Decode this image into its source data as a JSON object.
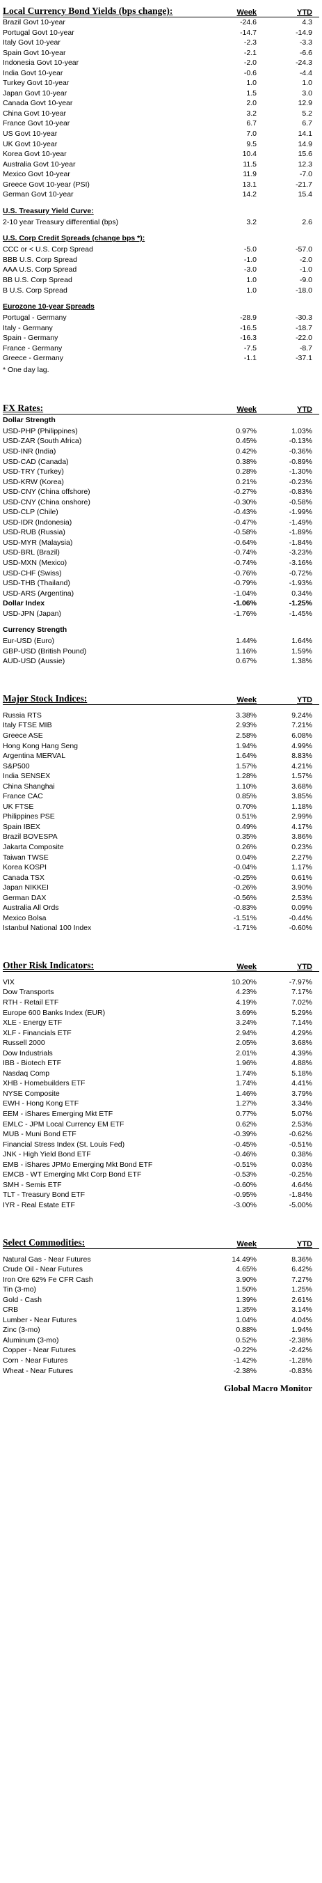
{
  "bonds": {
    "title": "Local Currency Bond Yields (bps change):",
    "col1": "Week",
    "col2": "YTD",
    "rows": [
      [
        "Brazil Govt 10-year",
        "-24.6",
        "4.3"
      ],
      [
        "Portugal Govt 10-year",
        "-14.7",
        "-14.9"
      ],
      [
        "Italy Govt 10-year",
        "-2.3",
        "-3.3"
      ],
      [
        "Spain Govt 10-year",
        "-2.1",
        "-6.6"
      ],
      [
        "Indonesia Govt 10-year",
        "-2.0",
        "-24.3"
      ],
      [
        "India Govt 10-year",
        "-0.6",
        "-4.4"
      ],
      [
        "Turkey Govt 10-year",
        "1.0",
        "1.0"
      ],
      [
        "Japan Govt 10-year",
        "1.5",
        "3.0"
      ],
      [
        "Canada Govt 10-year",
        "2.0",
        "12.9"
      ],
      [
        "China Govt 10-year",
        "3.2",
        "5.2"
      ],
      [
        "France Govt 10-year",
        "6.7",
        "6.7"
      ],
      [
        "US Govt 10-year",
        "7.0",
        "14.1"
      ],
      [
        "UK Govt 10-year",
        "9.5",
        "14.9"
      ],
      [
        "Korea Govt 10-year",
        "10.4",
        "15.6"
      ],
      [
        "Australia Govt 10-year",
        "11.5",
        "12.3"
      ],
      [
        "Mexico Govt 10-year",
        "11.9",
        "-7.0"
      ],
      [
        "Greece Govt 10-year (PSI)",
        "13.1",
        "-21.7"
      ],
      [
        "German Govt 10-year",
        "14.2",
        "15.4"
      ]
    ],
    "curve_title": "U.S. Treasury Yield Curve:",
    "curve_rows": [
      [
        "2-10 year Treasury differential (bps)",
        "3.2",
        "2.6"
      ]
    ],
    "credit_title": "U.S. Corp Credit Spreads (change bps *):",
    "credit_rows": [
      [
        "CCC or < U.S. Corp Spread",
        "-5.0",
        "-57.0"
      ],
      [
        "BBB U.S. Corp Spread",
        "-1.0",
        "-2.0"
      ],
      [
        "AAA U.S. Corp Spread",
        "-3.0",
        "-1.0"
      ],
      [
        "BB U.S. Corp Spread",
        "1.0",
        "-9.0"
      ],
      [
        "B U.S. Corp Spread",
        "1.0",
        "-18.0"
      ]
    ],
    "euro_title": "Eurozone 10-year Spreads",
    "euro_rows": [
      [
        "Portugal - Germany",
        "-28.9",
        "-30.3"
      ],
      [
        "Italy - Germany",
        "-16.5",
        "-18.7"
      ],
      [
        "Spain - Germany",
        "-16.3",
        "-22.0"
      ],
      [
        "France - Germany",
        "-7.5",
        "-8.7"
      ],
      [
        "Greece - Germany",
        "-1.1",
        "-37.1"
      ]
    ],
    "note": "* One day lag."
  },
  "fx": {
    "title": "FX Rates:",
    "col1": "Week",
    "col2": "YTD",
    "strength_title": "Dollar Strength",
    "rows": [
      [
        "USD-PHP (Philippines)",
        "0.97%",
        "1.03%"
      ],
      [
        "USD-ZAR (South Africa)",
        "0.45%",
        "-0.13%"
      ],
      [
        "USD-INR (India)",
        "0.42%",
        "-0.36%"
      ],
      [
        "USD-CAD (Canada)",
        "0.38%",
        "-0.89%"
      ],
      [
        "USD-TRY (Turkey)",
        "0.28%",
        "-1.30%"
      ],
      [
        "USD-KRW (Korea)",
        "0.21%",
        "-0.23%"
      ],
      [
        "USD-CNY (China offshore)",
        "-0.27%",
        "-0.83%"
      ],
      [
        "USD-CNY (China onshore)",
        "-0.30%",
        "-0.58%"
      ],
      [
        "USD-CLP (Chile)",
        "-0.43%",
        "-1.99%"
      ],
      [
        "USD-IDR (Indonesia)",
        "-0.47%",
        "-1.49%"
      ],
      [
        "USD-RUB (Russia)",
        "-0.58%",
        "-1.89%"
      ],
      [
        "USD-MYR (Malaysia)",
        "-0.64%",
        "-1.84%"
      ],
      [
        "USD-BRL (Brazil)",
        "-0.74%",
        "-3.23%"
      ],
      [
        "USD-MXN  (Mexico)",
        "-0.74%",
        "-3.16%"
      ],
      [
        "USD-CHF (Swiss)",
        "-0.76%",
        "-0.72%"
      ],
      [
        "USD-THB  (Thailand)",
        "-0.79%",
        "-1.93%"
      ],
      [
        "USD-ARS (Argentina)",
        "-1.04%",
        "0.34%"
      ],
      [
        "Dollar Index",
        "-1.06%",
        "-1.25%"
      ],
      [
        "USD-JPN (Japan)",
        "-1.76%",
        "-1.45%"
      ]
    ],
    "currency_title": "Currency Strength",
    "currency_rows": [
      [
        "Eur-USD (Euro)",
        "1.44%",
        "1.64%"
      ],
      [
        "GBP-USD (British Pound)",
        "1.16%",
        "1.59%"
      ],
      [
        "AUD-USD (Aussie)",
        "0.67%",
        "1.38%"
      ]
    ]
  },
  "stocks": {
    "title": "Major Stock Indices:",
    "col1": "Week",
    "col2": "YTD",
    "rows": [
      [
        "Russia RTS",
        "3.38%",
        "9.24%"
      ],
      [
        "Italy FTSE MIB",
        "2.93%",
        "7.21%"
      ],
      [
        "Greece ASE",
        "2.58%",
        "6.08%"
      ],
      [
        "Hong Kong Hang Seng",
        "1.94%",
        "4.99%"
      ],
      [
        "Argentina MERVAL",
        "1.64%",
        "8.83%"
      ],
      [
        "S&P500",
        "1.57%",
        "4.21%"
      ],
      [
        "India SENSEX",
        "1.28%",
        "1.57%"
      ],
      [
        "China Shanghai",
        "1.10%",
        "3.68%"
      ],
      [
        "France CAC",
        "0.85%",
        "3.85%"
      ],
      [
        "UK FTSE",
        "0.70%",
        "1.18%"
      ],
      [
        "Philippines PSE",
        "0.51%",
        "2.99%"
      ],
      [
        "Spain IBEX",
        "0.49%",
        "4.17%"
      ],
      [
        "Brazil BOVESPA",
        "0.35%",
        "3.86%"
      ],
      [
        "Jakarta Composite",
        "0.26%",
        "0.23%"
      ],
      [
        "Taiwan  TWSE",
        "0.04%",
        "2.27%"
      ],
      [
        "Korea KOSPI",
        "-0.04%",
        "1.17%"
      ],
      [
        "Canada TSX",
        "-0.25%",
        "0.61%"
      ],
      [
        "Japan NIKKEI",
        "-0.26%",
        "3.90%"
      ],
      [
        "German DAX",
        "-0.56%",
        "2.53%"
      ],
      [
        "Australia All Ords",
        "-0.83%",
        "0.09%"
      ],
      [
        "Mexico Bolsa",
        "-1.51%",
        "-0.44%"
      ],
      [
        "Istanbul National 100 Index",
        "-1.71%",
        "-0.60%"
      ]
    ]
  },
  "risk": {
    "title": "Other Risk Indicators:",
    "col1": "Week",
    "col2": "YTD",
    "rows": [
      [
        "VIX",
        "10.20%",
        "-7.97%"
      ],
      [
        "Dow Transports",
        "4.23%",
        "7.17%"
      ],
      [
        "RTH - Retail ETF",
        "4.19%",
        "7.02%"
      ],
      [
        "Europe 600 Banks Index (EUR)",
        "3.69%",
        "5.29%"
      ],
      [
        "XLE - Energy ETF",
        "3.24%",
        "7.14%"
      ],
      [
        "XLF - Financials ETF",
        "2.94%",
        "4.29%"
      ],
      [
        "Russell 2000",
        "2.05%",
        "3.68%"
      ],
      [
        "Dow Industrials",
        "2.01%",
        "4.39%"
      ],
      [
        "IBB - Biotech ETF",
        "1.96%",
        "4.88%"
      ],
      [
        "Nasdaq Comp",
        "1.74%",
        "5.18%"
      ],
      [
        "XHB - Homebuilders ETF",
        "1.74%",
        "4.41%"
      ],
      [
        "NYSE Composite",
        "1.46%",
        "3.79%"
      ],
      [
        "EWH - Hong Kong ETF",
        "1.27%",
        "3.34%"
      ],
      [
        "EEM - iShares Emerging Mkt ETF",
        "0.77%",
        "5.07%"
      ],
      [
        "EMLC - JPM Local Currency EM ETF",
        "0.62%",
        "2.53%"
      ],
      [
        "MUB - Muni Bond ETF",
        "-0.39%",
        "-0.62%"
      ],
      [
        "Financial Stress Index (St. Louis Fed)",
        "-0.45%",
        "-0.51%"
      ],
      [
        "JNK - High Yield Bond ETF",
        "-0.46%",
        "0.38%"
      ],
      [
        "EMB - iShares JPMo Emerging Mkt Bond ETF",
        "-0.51%",
        "0.03%"
      ],
      [
        "EMCB - WT Emerging Mkt Corp Bond ETF",
        "-0.53%",
        "-0.25%"
      ],
      [
        "SMH - Semis ETF",
        "-0.60%",
        "4.64%"
      ],
      [
        "TLT - Treasury Bond ETF",
        "-0.95%",
        "-1.84%"
      ],
      [
        "IYR - Real Estate ETF",
        "-3.00%",
        "-5.00%"
      ]
    ]
  },
  "commodities": {
    "title": "Select Commodities:",
    "col1": "Week",
    "col2": "YTD",
    "rows": [
      [
        "Natural Gas - Near Futures",
        "14.49%",
        "8.36%"
      ],
      [
        "Crude Oil - Near Futures",
        "4.65%",
        "6.42%"
      ],
      [
        "Iron Ore 62% Fe CFR Cash",
        "3.90%",
        "7.27%"
      ],
      [
        "Tin (3-mo)",
        "1.50%",
        "1.25%"
      ],
      [
        "Gold - Cash",
        "1.39%",
        "2.61%"
      ],
      [
        "CRB",
        "1.35%",
        "3.14%"
      ],
      [
        "Lumber - Near Futures",
        "1.04%",
        "4.04%"
      ],
      [
        "Zinc (3-mo)",
        "0.88%",
        "1.94%"
      ],
      [
        "Aluminum (3-mo)",
        "0.52%",
        "-2.38%"
      ],
      [
        "Copper - Near Futures",
        "-0.22%",
        "-2.42%"
      ],
      [
        "Corn - Near Futures",
        "-1.42%",
        "-1.28%"
      ],
      [
        "Wheat - Near Futures",
        "-2.38%",
        "-0.83%"
      ]
    ]
  },
  "footer": "Global Macro Monitor"
}
